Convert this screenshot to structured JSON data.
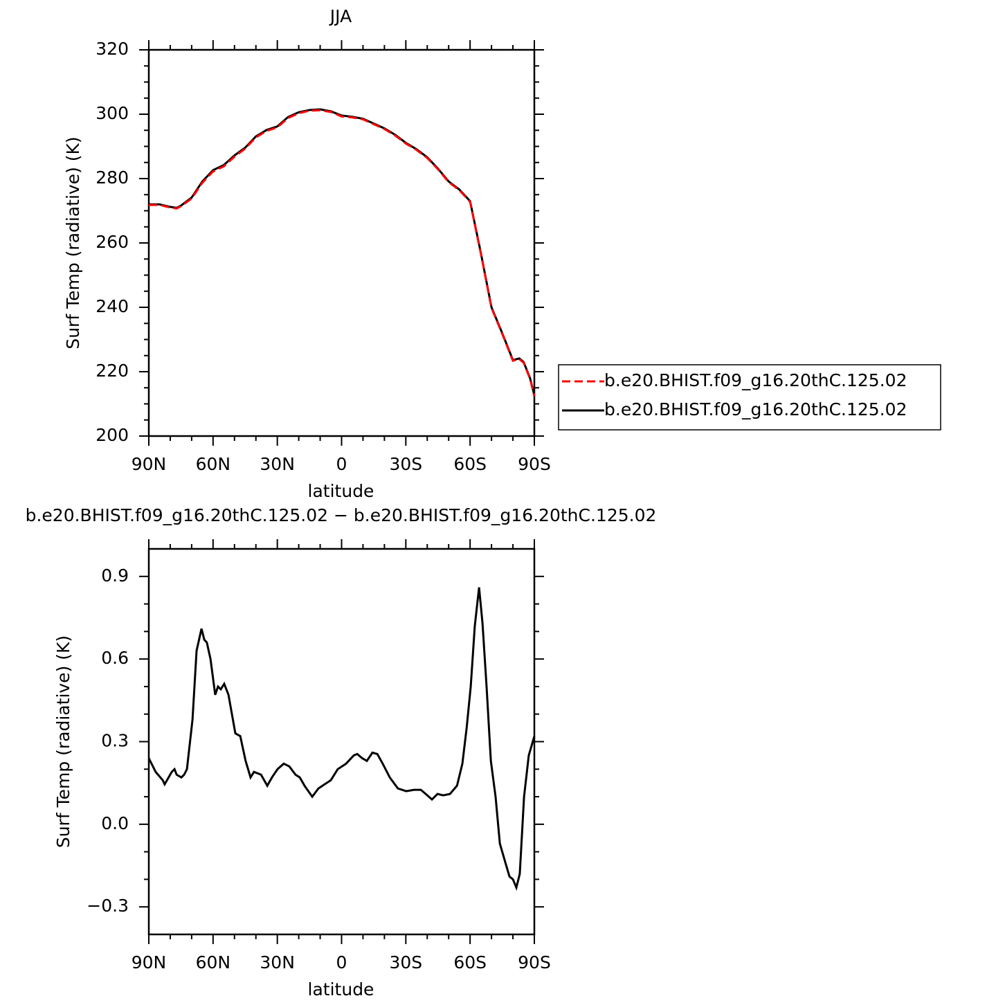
{
  "chart_data": [
    {
      "type": "line",
      "title": "JJA",
      "xlabel": "latitude",
      "ylabel": "Surf Temp (radiative) (K)",
      "x": [
        90,
        85,
        80,
        77,
        75,
        70,
        65,
        60,
        55,
        50,
        45,
        40,
        35,
        30,
        25,
        20,
        15,
        10,
        5,
        0,
        -5,
        -10,
        -15,
        -20,
        -25,
        -30,
        -35,
        -40,
        -45,
        -50,
        -55,
        -60,
        -65,
        -70,
        -75,
        -80,
        -83,
        -85,
        -88,
        -90
      ],
      "series": [
        {
          "name": "b.e20.BHIST.f09_g16.20thC.125.02",
          "color": "#ff0000",
          "linestyle": "dashed",
          "values": [
            271.8,
            271.8,
            271,
            270.7,
            271.4,
            273.8,
            278.7,
            282.2,
            283.8,
            286.8,
            289.3,
            292.8,
            294.8,
            295.9,
            298.8,
            300.3,
            301.1,
            301.2,
            300.7,
            299.3,
            299,
            298.4,
            296.9,
            295.4,
            293.4,
            290.9,
            288.9,
            286.4,
            282.9,
            278.9,
            276.4,
            272.8,
            256.8,
            239.8,
            231.8,
            223.4,
            223.9,
            222.8,
            217.8,
            212.4
          ]
        },
        {
          "name": "b.e20.BHIST.f09_g16.20thC.125.02",
          "color": "#000000",
          "linestyle": "solid",
          "values": [
            272,
            272,
            271.2,
            270.9,
            271.6,
            274.1,
            279.1,
            282.6,
            284.2,
            287.2,
            289.6,
            293.1,
            295.1,
            296.2,
            299.1,
            300.6,
            301.3,
            301.5,
            300.9,
            299.6,
            299.2,
            298.6,
            297.1,
            295.6,
            293.6,
            291.1,
            289.1,
            286.6,
            283.1,
            279.1,
            276.6,
            273,
            257,
            240,
            232,
            223.6,
            224.1,
            223,
            218,
            212.7
          ]
        }
      ],
      "xlim": [
        90,
        -90
      ],
      "xticks": [
        {
          "value": 90,
          "label": "90N"
        },
        {
          "value": 60,
          "label": "60N"
        },
        {
          "value": 30,
          "label": "30N"
        },
        0,
        {
          "value": -30,
          "label": "30S"
        },
        {
          "value": -60,
          "label": "60S"
        },
        {
          "value": -90,
          "label": "90S"
        }
      ],
      "ylim": [
        200,
        320
      ],
      "yticks": [
        200,
        220,
        240,
        260,
        280,
        300,
        320
      ],
      "legend": "right"
    },
    {
      "type": "line",
      "title": "b.e20.BHIST.f09_g16.20thC.125.02 − b.e20.BHIST.f09_g16.20thC.125.02",
      "xlabel": "latitude",
      "ylabel": "Surf Temp (radiative) (K)",
      "x": [
        90,
        86.8,
        83.5,
        82.6,
        79.3,
        78,
        77,
        74.8,
        73.5,
        72.2,
        69.6,
        67.7,
        65.4,
        64.1,
        62.9,
        61.2,
        59,
        57.7,
        56.4,
        54.8,
        52.8,
        49.6,
        47.3,
        44.8,
        42.5,
        40.9,
        37.6,
        34.7,
        32.5,
        29.9,
        27,
        24.4,
        21.5,
        19.5,
        17.3,
        13.7,
        10.8,
        7.9,
        5,
        1.8,
        -2.1,
        -5.7,
        -7.3,
        -9.6,
        -11.8,
        -14.4,
        -16.7,
        -19.2,
        -22.5,
        -26.3,
        -30.2,
        -33.8,
        -37,
        -39.3,
        -42.2,
        -44.8,
        -47.4,
        -50.6,
        -53.9,
        -56.4,
        -58.4,
        -60.3,
        -62.2,
        -64.2,
        -65.8,
        -67.7,
        -69.7,
        -71.9,
        -73.9,
        -76.5,
        -78.4,
        -80,
        -81.6,
        -83.2,
        -85.2,
        -87.4,
        -90
      ],
      "series": [
        {
          "color": "#000000",
          "linestyle": "solid",
          "values": [
            0.24,
            0.19,
            0.16,
            0.145,
            0.19,
            0.2,
            0.18,
            0.17,
            0.18,
            0.2,
            0.38,
            0.63,
            0.71,
            0.67,
            0.66,
            0.6,
            0.47,
            0.5,
            0.49,
            0.51,
            0.47,
            0.33,
            0.32,
            0.23,
            0.17,
            0.19,
            0.18,
            0.14,
            0.17,
            0.2,
            0.22,
            0.21,
            0.18,
            0.17,
            0.14,
            0.1,
            0.13,
            0.145,
            0.16,
            0.2,
            0.22,
            0.25,
            0.255,
            0.24,
            0.23,
            0.26,
            0.255,
            0.22,
            0.17,
            0.13,
            0.12,
            0.125,
            0.125,
            0.11,
            0.09,
            0.11,
            0.105,
            0.11,
            0.14,
            0.22,
            0.35,
            0.5,
            0.72,
            0.86,
            0.73,
            0.5,
            0.23,
            0.1,
            -0.07,
            -0.14,
            -0.19,
            -0.2,
            -0.23,
            -0.18,
            0.1,
            0.25,
            0.32
          ]
        }
      ],
      "xlim": [
        90,
        -90
      ],
      "xticks": [
        {
          "value": 90,
          "label": "90N"
        },
        {
          "value": 60,
          "label": "60N"
        },
        {
          "value": 30,
          "label": "30N"
        },
        0,
        {
          "value": -30,
          "label": "30S"
        },
        {
          "value": -60,
          "label": "60S"
        },
        {
          "value": -90,
          "label": "90S"
        }
      ],
      "ylim": [
        -0.4,
        1.0
      ],
      "yticks": [
        {
          "value": -0.3,
          "label": "−0.3"
        },
        {
          "value": 0,
          "label": "0.0"
        },
        0.3,
        0.6,
        0.9
      ]
    }
  ]
}
